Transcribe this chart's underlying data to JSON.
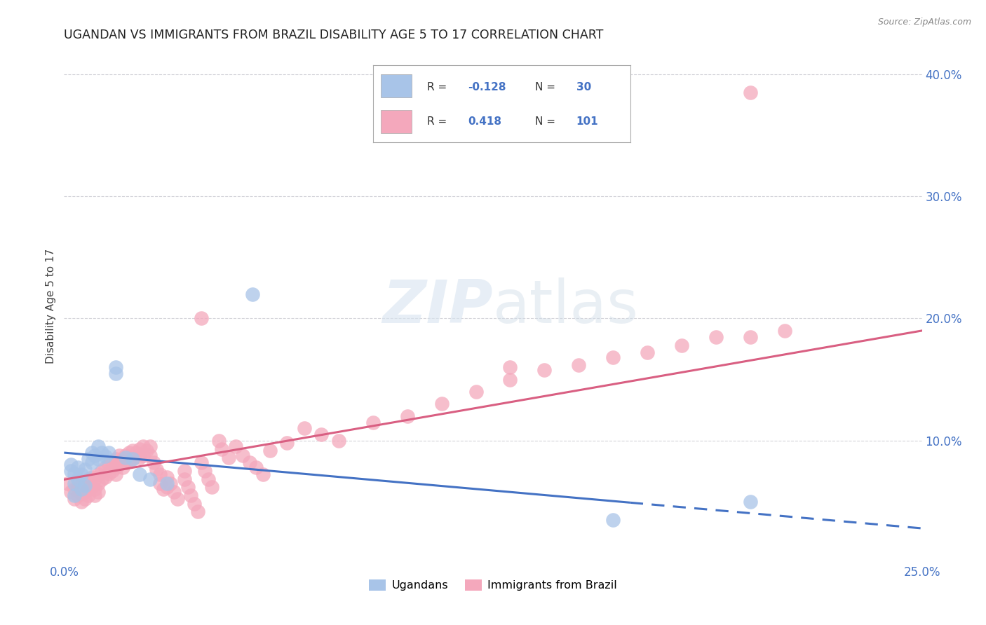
{
  "title": "UGANDAN VS IMMIGRANTS FROM BRAZIL DISABILITY AGE 5 TO 17 CORRELATION CHART",
  "source": "Source: ZipAtlas.com",
  "ylabel": "Disability Age 5 to 17",
  "xlim": [
    0.0,
    0.25
  ],
  "ylim": [
    0.0,
    0.42
  ],
  "xticks": [
    0.0,
    0.25
  ],
  "yticks_right": [
    0.1,
    0.2,
    0.3,
    0.4
  ],
  "ugandan_color": "#a8c4e8",
  "brazil_color": "#f4a8bc",
  "ugandan_line_color": "#4472c4",
  "brazil_line_color": "#d95f82",
  "background_color": "#ffffff",
  "grid_color": "#c8c8d0",
  "title_fontsize": 12.5,
  "axis_label_fontsize": 11,
  "tick_fontsize": 12,
  "watermark_zip": "ZIP",
  "watermark_atlas": "atlas",
  "legend_R1": "-0.128",
  "legend_N1": "30",
  "legend_R2": "0.418",
  "legend_N2": "101",
  "ugandan_x": [
    0.002,
    0.002,
    0.003,
    0.003,
    0.003,
    0.004,
    0.004,
    0.005,
    0.005,
    0.006,
    0.006,
    0.007,
    0.008,
    0.008,
    0.009,
    0.01,
    0.01,
    0.011,
    0.012,
    0.013,
    0.015,
    0.015,
    0.018,
    0.02,
    0.022,
    0.025,
    0.03,
    0.055,
    0.16,
    0.2
  ],
  "ugandan_y": [
    0.075,
    0.08,
    0.073,
    0.065,
    0.055,
    0.078,
    0.068,
    0.072,
    0.06,
    0.076,
    0.063,
    0.085,
    0.09,
    0.082,
    0.088,
    0.095,
    0.085,
    0.09,
    0.087,
    0.09,
    0.155,
    0.16,
    0.086,
    0.085,
    0.072,
    0.068,
    0.065,
    0.22,
    0.035,
    0.05
  ],
  "brazil_x": [
    0.001,
    0.002,
    0.003,
    0.003,
    0.004,
    0.004,
    0.005,
    0.005,
    0.005,
    0.006,
    0.006,
    0.006,
    0.007,
    0.007,
    0.007,
    0.008,
    0.008,
    0.009,
    0.009,
    0.009,
    0.01,
    0.01,
    0.01,
    0.011,
    0.011,
    0.012,
    0.012,
    0.013,
    0.013,
    0.014,
    0.014,
    0.015,
    0.015,
    0.015,
    0.016,
    0.016,
    0.017,
    0.017,
    0.018,
    0.018,
    0.019,
    0.019,
    0.02,
    0.02,
    0.021,
    0.022,
    0.022,
    0.023,
    0.023,
    0.024,
    0.025,
    0.025,
    0.026,
    0.027,
    0.028,
    0.028,
    0.029,
    0.03,
    0.03,
    0.031,
    0.032,
    0.033,
    0.035,
    0.035,
    0.036,
    0.037,
    0.038,
    0.039,
    0.04,
    0.041,
    0.042,
    0.043,
    0.045,
    0.046,
    0.048,
    0.05,
    0.052,
    0.054,
    0.056,
    0.058,
    0.06,
    0.065,
    0.07,
    0.075,
    0.08,
    0.09,
    0.1,
    0.11,
    0.12,
    0.13,
    0.14,
    0.15,
    0.16,
    0.17,
    0.18,
    0.19,
    0.2,
    0.21,
    0.04,
    0.13,
    0.2
  ],
  "brazil_y": [
    0.065,
    0.058,
    0.06,
    0.052,
    0.062,
    0.055,
    0.063,
    0.057,
    0.05,
    0.065,
    0.058,
    0.052,
    0.068,
    0.06,
    0.055,
    0.07,
    0.062,
    0.068,
    0.06,
    0.055,
    0.072,
    0.065,
    0.058,
    0.075,
    0.068,
    0.078,
    0.07,
    0.08,
    0.073,
    0.082,
    0.075,
    0.085,
    0.078,
    0.072,
    0.088,
    0.08,
    0.085,
    0.078,
    0.088,
    0.082,
    0.09,
    0.083,
    0.092,
    0.085,
    0.09,
    0.093,
    0.086,
    0.095,
    0.088,
    0.092,
    0.095,
    0.088,
    0.082,
    0.076,
    0.072,
    0.065,
    0.06,
    0.07,
    0.062,
    0.065,
    0.058,
    0.052,
    0.075,
    0.068,
    0.062,
    0.055,
    0.048,
    0.042,
    0.082,
    0.075,
    0.068,
    0.062,
    0.1,
    0.093,
    0.086,
    0.095,
    0.088,
    0.082,
    0.078,
    0.072,
    0.092,
    0.098,
    0.11,
    0.105,
    0.1,
    0.115,
    0.12,
    0.13,
    0.14,
    0.15,
    0.158,
    0.162,
    0.168,
    0.172,
    0.178,
    0.185,
    0.185,
    0.19,
    0.2,
    0.16,
    0.385
  ]
}
